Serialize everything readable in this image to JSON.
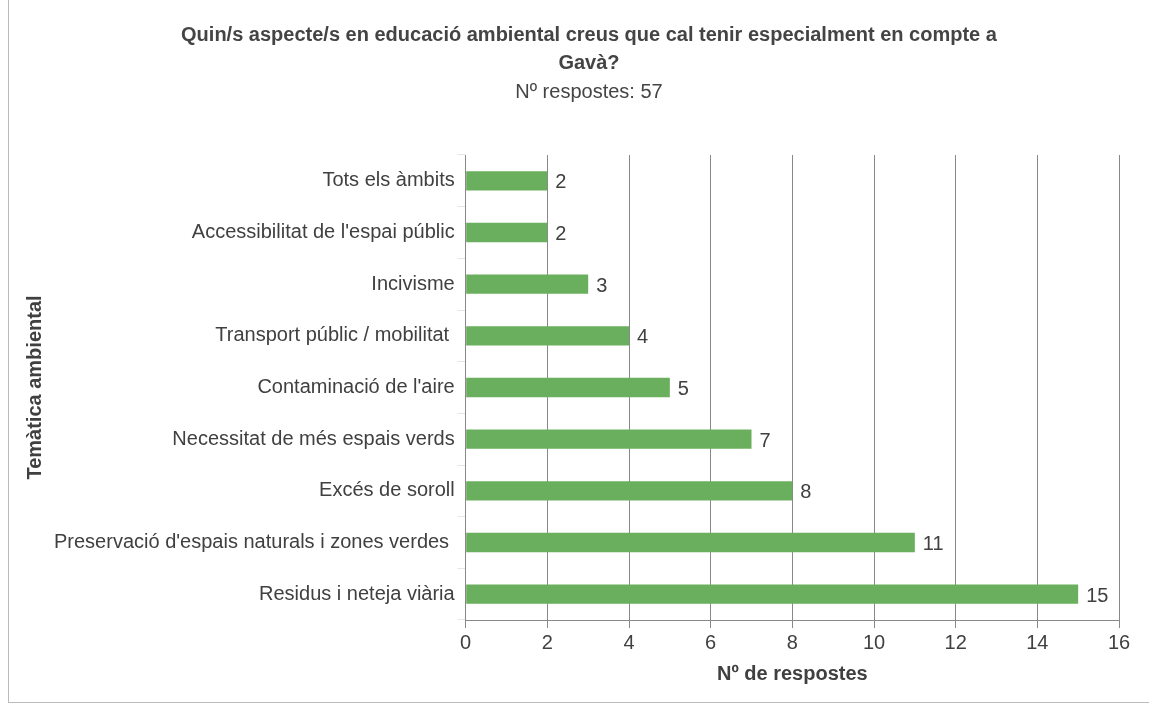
{
  "chart_data": {
    "type": "bar",
    "orientation": "horizontal",
    "title": "Quin/s aspecte/s en educació ambiental creus que cal tenir especialment en compte a Gavà?",
    "subtitle": "Nº respostes: 57",
    "xlabel": "Nº de respostes",
    "ylabel": "Temàtica ambiental",
    "categories": [
      "Tots els àmbits",
      "Accessibilitat de l'espai públic",
      "Incivisme",
      "Transport públic / mobilitat ",
      "Contaminació de l'aire",
      "Necessitat de més espais verds",
      "Excés de soroll",
      "Preservació d'espais naturals i zones verdes ",
      "Residus i neteja viària"
    ],
    "values": [
      2,
      2,
      3,
      4,
      5,
      7,
      8,
      11,
      15
    ],
    "color": "#6aaf5e",
    "xlim": [
      0,
      16
    ],
    "xticks": [
      0,
      2,
      4,
      6,
      8,
      10,
      12,
      14,
      16
    ],
    "grid": "x",
    "data_labels": true,
    "legend": false
  }
}
